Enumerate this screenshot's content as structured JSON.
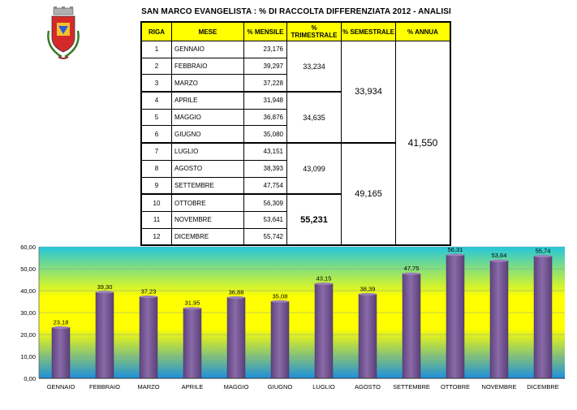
{
  "title": "SAN MARCO EVANGELISTA : % DI RACCOLTA DIFFERENZIATA 2012 - ANALISI",
  "table": {
    "headers": {
      "riga": "RIGA",
      "mese": "MESE",
      "mensile": "% MENSILE",
      "trimestrale": "% TRIMESTRALE",
      "semestrale": "% SEMESTRALE",
      "annua": "% ANNUA"
    },
    "rows": [
      {
        "riga": "1",
        "mese": "GENNAIO",
        "mensile": "23,176"
      },
      {
        "riga": "2",
        "mese": "FEBBRAIO",
        "mensile": "39,297"
      },
      {
        "riga": "3",
        "mese": "MARZO",
        "mensile": "37,228"
      },
      {
        "riga": "4",
        "mese": "APRILE",
        "mensile": "31,948"
      },
      {
        "riga": "5",
        "mese": "MAGGIO",
        "mensile": "36,876"
      },
      {
        "riga": "6",
        "mese": "GIUGNO",
        "mensile": "35,080"
      },
      {
        "riga": "7",
        "mese": "LUGLIO",
        "mensile": "43,151"
      },
      {
        "riga": "8",
        "mese": "AGOSTO",
        "mensile": "38,393"
      },
      {
        "riga": "9",
        "mese": "SETTEMBRE",
        "mensile": "47,754"
      },
      {
        "riga": "10",
        "mese": "OTTOBRE",
        "mensile": "56,309"
      },
      {
        "riga": "11",
        "mese": "NOVEMBRE",
        "mensile": "53,641"
      },
      {
        "riga": "12",
        "mese": "DICEMBRE",
        "mensile": "55,742"
      }
    ],
    "trimestrale": [
      "33,234",
      "34,635",
      "43,099",
      "55,231"
    ],
    "semestrale": [
      "33,934",
      "49,165"
    ],
    "annua": "41,550"
  },
  "chart_data": {
    "type": "bar",
    "categories": [
      "GENNAIO",
      "FEBBRAIO",
      "MARZO",
      "APRILE",
      "MAGGIO",
      "GIUGNO",
      "LUGLIO",
      "AGOSTO",
      "SETTEMBRE",
      "OTTOBRE",
      "NOVEMBRE",
      "DICEMBRE"
    ],
    "values": [
      23.18,
      39.3,
      37.23,
      31.95,
      36.88,
      35.08,
      43.15,
      38.39,
      47.75,
      56.31,
      53.64,
      55.74
    ],
    "value_labels": [
      "23,18",
      "39,30",
      "37,23",
      "31,95",
      "36,88",
      "35,08",
      "43,15",
      "38,39",
      "47,75",
      "56,31",
      "53,64",
      "55,74"
    ],
    "yticks": [
      "0,00",
      "10,00",
      "20,00",
      "30,00",
      "40,00",
      "50,00",
      "60,00"
    ],
    "ylim": [
      0,
      60
    ],
    "grid": true,
    "bar_color": "#7a5a96",
    "background_colors": [
      "#1e8fdc",
      "#ffff00",
      "#25c6dc"
    ]
  }
}
